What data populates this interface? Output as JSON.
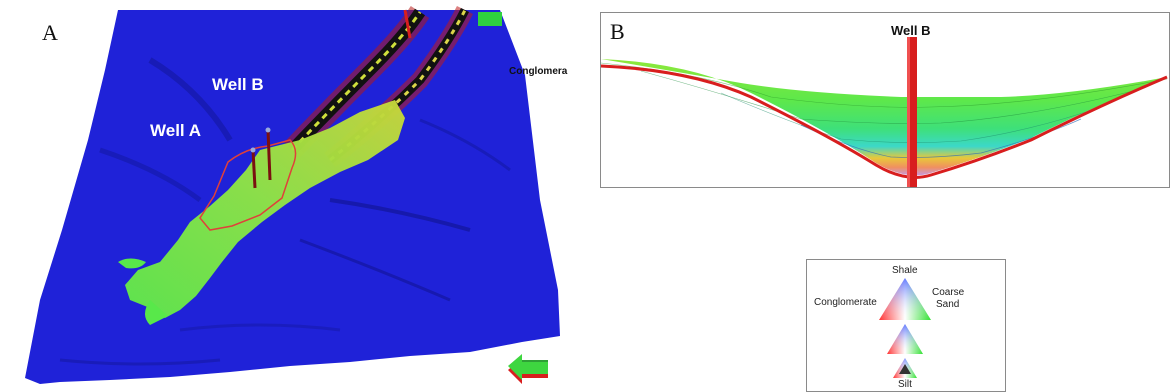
{
  "panel_a": {
    "letter": "A",
    "well_a_label": "Well A",
    "well_b_label": "Well B",
    "conglomerate_label": "Conglomera"
  },
  "panel_b": {
    "letter": "B",
    "well_label": "Well B"
  },
  "legend": {
    "top": "Shale",
    "left": "Conglomerate",
    "right_line1": "Coarse",
    "right_line2": "Sand",
    "bottom": "Silt"
  },
  "colors": {
    "surface_blue": "#1f22d8",
    "channel_green": "#58e84a",
    "well_red": "#d81e1e",
    "nav_arrow_green": "#3ed640"
  }
}
